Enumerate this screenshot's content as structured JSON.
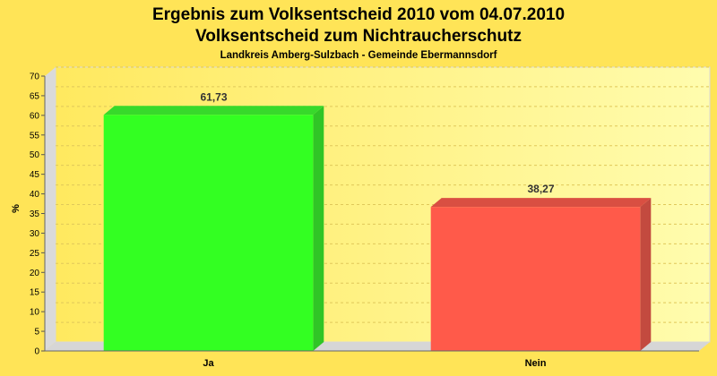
{
  "chart_data": {
    "type": "bar",
    "title": "Ergebnis zum Volksentscheid 2010 vom 04.07.2010",
    "subtitle": "Volksentscheid zum Nichtraucherschutz",
    "subsubtitle": "Landkreis Amberg-Sulzbach - Gemeinde Ebermannsdorf",
    "ylabel": "%",
    "xlabel": "",
    "categories": [
      "Ja",
      "Nein"
    ],
    "values": [
      61.73,
      38.27
    ],
    "value_labels": [
      "61,73",
      "38,27"
    ],
    "ylim": [
      0,
      70
    ],
    "yticks": [
      0,
      5,
      10,
      15,
      20,
      25,
      30,
      35,
      40,
      45,
      50,
      55,
      60,
      65,
      70
    ],
    "grid": true,
    "legend": "none",
    "colors": {
      "background": "#ffe457",
      "plot_gradient_start": "#ffe95f",
      "plot_gradient_end": "#fffcae",
      "bar_colors": [
        "#33ff22",
        "#ff5a4a"
      ],
      "bar_top_colors": [
        "#37d92b",
        "#d94f42"
      ],
      "bar_side_colors": [
        "#30c526",
        "#c34a3f"
      ]
    }
  }
}
